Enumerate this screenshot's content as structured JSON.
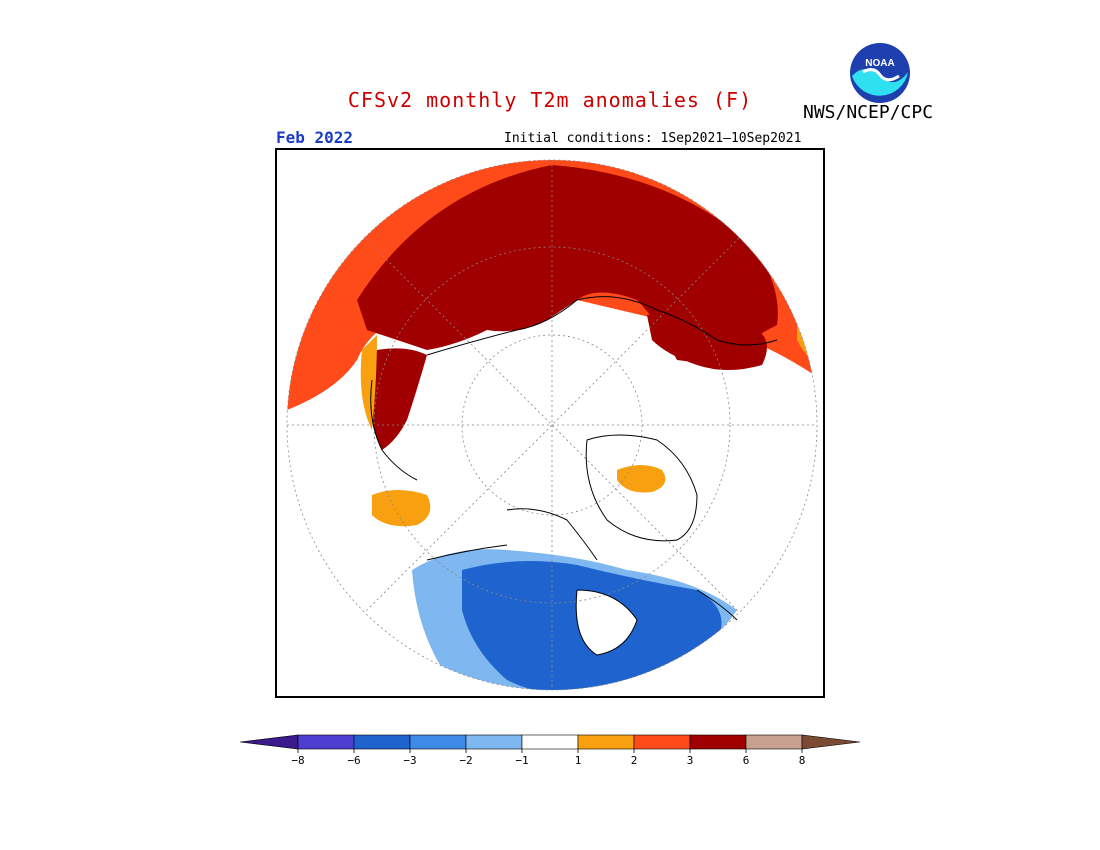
{
  "title": "CFSv2 monthly T2m anomalies (F)",
  "agency": "NWS/NCEP/CPC",
  "logo_text": "NOAA",
  "month": "Feb 2022",
  "initial_conditions": "Initial conditions: 1Sep2021—10Sep2021",
  "colors": {
    "title": "#cc0000",
    "month": "#1a3cc8",
    "bins": [
      "#3a1a8c",
      "#4f3fd0",
      "#1f63cf",
      "#3d8ae8",
      "#7fb8f0",
      "#ffffff",
      "#f8a010",
      "#ff4a1a",
      "#a00000",
      "#c8a090",
      "#7a4a34"
    ]
  },
  "legend": {
    "labels": [
      "−8",
      "−6",
      "−3",
      "−2",
      "−1",
      "1",
      "2",
      "3",
      "6",
      "8"
    ]
  }
}
